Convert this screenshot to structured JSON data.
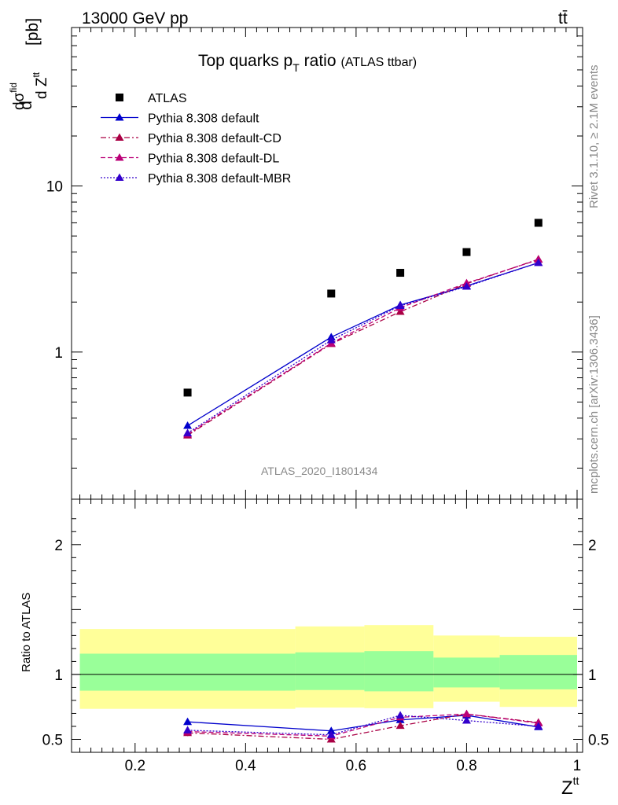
{
  "header": {
    "energy_label": "13000 GeV pp",
    "process_label": "tt̄"
  },
  "side": {
    "rivet_label": "Rivet 3.1.10, ≥ 2.1M events",
    "source_label": "mcplots.cern.ch [arXiv:1306.3436]"
  },
  "watermark": "ATLAS_2020_I1801434",
  "chart_data": [
    {
      "type": "scatter",
      "title": "Top quarks p_T ratio",
      "title_main": "Top quarks p",
      "title_sub": "T",
      "title_rest": " ratio",
      "title_suffix": "(ATLAS ttbar)",
      "ylabel": "dσfid/dZtt [pb]",
      "ylabel_parts": {
        "d1": "d",
        "dsig": "dσ",
        "fid": "fid",
        "d2": "d Z",
        "tt": "tt",
        "unit": "[pb]"
      },
      "yscale": "log",
      "ylim": [
        0.13,
        90
      ],
      "xlim": [
        0.085,
        1.01
      ],
      "yticks": [
        {
          "value": 1,
          "label": "1"
        },
        {
          "value": 10,
          "label": "10"
        }
      ],
      "x": [
        0.295,
        0.555,
        0.68,
        0.8,
        0.93
      ],
      "series": [
        {
          "name": "ATLAS",
          "values": [
            0.57,
            2.25,
            3.0,
            4.0,
            6.0
          ],
          "color": "#000000",
          "marker": "square"
        },
        {
          "name": "Pythia 8.308 default",
          "values": [
            0.36,
            1.23,
            1.92,
            2.5,
            3.45
          ],
          "color": "#0000cc",
          "marker": "triangle",
          "dash": "solid"
        },
        {
          "name": "Pythia 8.308 default-CD",
          "values": [
            0.315,
            1.12,
            1.75,
            2.58,
            3.62
          ],
          "color": "#aa0044",
          "marker": "triangle",
          "dash": "dashdot"
        },
        {
          "name": "Pythia 8.308 default-DL",
          "values": [
            0.32,
            1.13,
            1.85,
            2.6,
            3.6
          ],
          "color": "#bb0077",
          "marker": "triangle",
          "dash": "dashed"
        },
        {
          "name": "Pythia 8.308 default-MBR",
          "values": [
            0.325,
            1.18,
            1.9,
            2.48,
            3.45
          ],
          "color": "#3300cc",
          "marker": "triangle",
          "dash": "dotted"
        }
      ],
      "legend_position": "top-left"
    },
    {
      "type": "line",
      "ylabel": "Ratio to ATLAS",
      "xlabel": "Z^tt",
      "xlabel_main": "Z",
      "xlabel_sup": "tt",
      "xlim": [
        0.085,
        1.01
      ],
      "ylim": [
        0.4,
        2.35
      ],
      "xticks": [
        {
          "value": 0.2,
          "label": "0.2"
        },
        {
          "value": 0.4,
          "label": "0.4"
        },
        {
          "value": 0.6,
          "label": "0.6"
        },
        {
          "value": 0.8,
          "label": "0.8"
        },
        {
          "value": 1.0,
          "label": "1"
        }
      ],
      "yticks": [
        {
          "value": 0.5,
          "label": "0.5"
        },
        {
          "value": 1,
          "label": "1"
        },
        {
          "value": 2,
          "label": "2"
        }
      ],
      "reference_line": 1,
      "bins": [
        {
          "x0": 0.1,
          "x1": 0.49,
          "inner": [
            0.875,
            1.16
          ],
          "outer": [
            0.735,
            1.35
          ]
        },
        {
          "x0": 0.49,
          "x1": 0.615,
          "inner": [
            0.88,
            1.17
          ],
          "outer": [
            0.745,
            1.37
          ]
        },
        {
          "x0": 0.615,
          "x1": 0.74,
          "inner": [
            0.87,
            1.18
          ],
          "outer": [
            0.74,
            1.38
          ]
        },
        {
          "x0": 0.74,
          "x1": 0.86,
          "inner": [
            0.9,
            1.13
          ],
          "outer": [
            0.79,
            1.3
          ]
        },
        {
          "x0": 0.86,
          "x1": 1.0,
          "inner": [
            0.885,
            1.15
          ],
          "outer": [
            0.75,
            1.29
          ]
        }
      ],
      "band_colors": {
        "inner": "#99ff99",
        "outer": "#ffff99"
      },
      "x": [
        0.295,
        0.555,
        0.68,
        0.8,
        0.93
      ],
      "series": [
        {
          "name": "Pythia 8.308 default",
          "values": [
            0.635,
            0.565,
            0.65,
            0.685,
            0.595
          ],
          "errors": [
            0.025,
            0.02,
            0.02,
            0.015,
            0.015
          ],
          "color": "#0000cc",
          "dash": "solid"
        },
        {
          "name": "Pythia 8.308 default-CD",
          "values": [
            0.55,
            0.5,
            0.605,
            0.695,
            0.63
          ],
          "errors": [
            0.025,
            0.02,
            0.02,
            0.015,
            0.015
          ],
          "color": "#aa0044",
          "dash": "dashdot"
        },
        {
          "name": "Pythia 8.308 default-DL",
          "values": [
            0.56,
            0.525,
            0.67,
            0.695,
            0.625
          ],
          "errors": [
            0.025,
            0.02,
            0.02,
            0.015,
            0.015
          ],
          "color": "#bb0077",
          "dash": "dashed"
        },
        {
          "name": "Pythia 8.308 default-MBR",
          "values": [
            0.57,
            0.535,
            0.685,
            0.645,
            0.6
          ],
          "errors": [
            0.025,
            0.02,
            0.02,
            0.015,
            0.015
          ],
          "color": "#3300cc",
          "dash": "dotted"
        }
      ]
    }
  ]
}
